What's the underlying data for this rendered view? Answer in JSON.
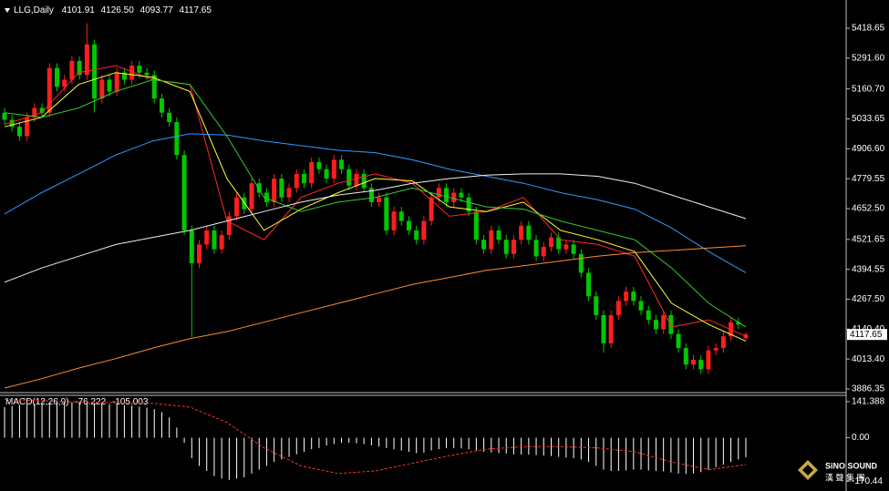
{
  "chart_data": [
    {
      "type": "candlestick",
      "title": "LLG,Daily",
      "last_bar_labels": [
        "4101.91",
        "4126.50",
        "4093.77",
        "4117.65"
      ],
      "up_color": "#ff1e1e",
      "down_color": "#00c800",
      "open": [
        5060,
        5030,
        5000,
        4960,
        5040,
        5080,
        5060,
        5250,
        5170,
        5200,
        5280,
        5220,
        5350,
        5120,
        5200,
        5150,
        5230,
        5200,
        5260,
        5230,
        5220,
        5120,
        5060,
        5020,
        4880,
        4560,
        4420,
        4500,
        4560,
        4480,
        4540,
        4620,
        4700,
        4650,
        4760,
        4720,
        4680,
        4780,
        4700,
        4740,
        4800,
        4760,
        4850,
        4820,
        4780,
        4860,
        4820,
        4750,
        4800,
        4740,
        4680,
        4700,
        4560,
        4640,
        4600,
        4560,
        4520,
        4600,
        4700,
        4740,
        4680,
        4720,
        4700,
        4640,
        4520,
        4480,
        4560,
        4520,
        4460,
        4520,
        4580,
        4520,
        4450,
        4490,
        4530,
        4480,
        4500,
        4460,
        4380,
        4280,
        4200,
        4080,
        4200,
        4260,
        4300,
        4260,
        4220,
        4180,
        4140,
        4200,
        4120,
        4060,
        3990,
        4010,
        3970,
        4050,
        4060,
        4110,
        4170,
        4101.91
      ],
      "high": [
        5080,
        5050,
        5020,
        5060,
        5100,
        5100,
        5270,
        5270,
        5220,
        5300,
        5300,
        5440,
        5370,
        5220,
        5220,
        5250,
        5250,
        5280,
        5280,
        5250,
        5240,
        5140,
        5080,
        5040,
        4900,
        4580,
        4520,
        4580,
        4580,
        4560,
        4640,
        4720,
        4720,
        4780,
        4780,
        4740,
        4800,
        4800,
        4760,
        4820,
        4820,
        4870,
        4870,
        4840,
        4880,
        4880,
        4840,
        4820,
        4820,
        4760,
        4720,
        4720,
        4660,
        4660,
        4620,
        4580,
        4620,
        4720,
        4760,
        4760,
        4740,
        4740,
        4720,
        4660,
        4540,
        4580,
        4580,
        4540,
        4540,
        4600,
        4600,
        4540,
        4510,
        4550,
        4550,
        4520,
        4520,
        4480,
        4400,
        4300,
        4220,
        4220,
        4280,
        4320,
        4320,
        4280,
        4240,
        4200,
        4220,
        4220,
        4140,
        4080,
        4030,
        4030,
        4070,
        4080,
        4130,
        4190,
        4190,
        4126.5
      ],
      "low": [
        5010,
        4980,
        4940,
        4940,
        5020,
        5040,
        5040,
        5150,
        5150,
        5180,
        5200,
        5200,
        5060,
        5100,
        5130,
        5130,
        5180,
        5180,
        5210,
        5200,
        5100,
        5040,
        5000,
        4860,
        4540,
        4107,
        4400,
        4480,
        4460,
        4460,
        4520,
        4600,
        4630,
        4630,
        4700,
        4660,
        4660,
        4680,
        4680,
        4720,
        4740,
        4740,
        4800,
        4760,
        4760,
        4800,
        4730,
        4730,
        4720,
        4660,
        4660,
        4540,
        4540,
        4580,
        4540,
        4500,
        4500,
        4580,
        4680,
        4660,
        4660,
        4680,
        4620,
        4500,
        4460,
        4460,
        4500,
        4440,
        4440,
        4500,
        4500,
        4430,
        4430,
        4470,
        4460,
        4460,
        4440,
        4360,
        4260,
        4180,
        4040,
        4060,
        4180,
        4240,
        4240,
        4200,
        4160,
        4120,
        4120,
        4100,
        4040,
        3970,
        3970,
        3950,
        3950,
        4030,
        4040,
        4090,
        4140,
        4093.77
      ],
      "close": [
        5030,
        5000,
        4960,
        5040,
        5080,
        5060,
        5250,
        5170,
        5200,
        5280,
        5220,
        5350,
        5120,
        5200,
        5150,
        5230,
        5200,
        5260,
        5230,
        5220,
        5120,
        5060,
        5020,
        4880,
        4560,
        4420,
        4500,
        4560,
        4480,
        4540,
        4620,
        4700,
        4650,
        4760,
        4720,
        4680,
        4780,
        4700,
        4740,
        4800,
        4760,
        4850,
        4820,
        4780,
        4860,
        4820,
        4750,
        4800,
        4740,
        4680,
        4700,
        4560,
        4640,
        4600,
        4560,
        4520,
        4600,
        4700,
        4740,
        4680,
        4720,
        4700,
        4640,
        4520,
        4480,
        4560,
        4520,
        4460,
        4520,
        4580,
        4520,
        4450,
        4490,
        4530,
        4480,
        4500,
        4460,
        4380,
        4280,
        4200,
        4080,
        4200,
        4260,
        4300,
        4260,
        4220,
        4180,
        4140,
        4200,
        4120,
        4060,
        3990,
        4010,
        3970,
        4050,
        4060,
        4110,
        4170,
        4160,
        4117.65
      ],
      "lines": [
        {
          "color": "#ff2a2a",
          "values": [
            5010,
            5060,
            5230,
            5260,
            5200,
            5180,
            4600,
            4520,
            4700,
            4760,
            4800,
            4760,
            4620,
            4640,
            4700,
            4520,
            4500,
            4450,
            4150,
            4180,
            4110
          ]
        },
        {
          "color": "#ffff33",
          "values": [
            5000,
            5040,
            5180,
            5230,
            5210,
            5150,
            4780,
            4560,
            4650,
            4720,
            4780,
            4770,
            4660,
            4640,
            4680,
            4560,
            4520,
            4470,
            4250,
            4160,
            4090
          ]
        },
        {
          "color": "#33cc33",
          "values": [
            5060,
            5040,
            5080,
            5150,
            5200,
            5180,
            4960,
            4700,
            4640,
            4680,
            4700,
            4740,
            4700,
            4660,
            4650,
            4600,
            4560,
            4520,
            4400,
            4250,
            4150
          ]
        },
        {
          "color": "#3399ff",
          "values": [
            4630,
            4720,
            4800,
            4880,
            4940,
            4970,
            4965,
            4940,
            4920,
            4900,
            4890,
            4860,
            4820,
            4790,
            4760,
            4720,
            4690,
            4650,
            4570,
            4470,
            4380
          ]
        },
        {
          "color": "#f0f0f0",
          "values": [
            4340,
            4400,
            4450,
            4500,
            4530,
            4560,
            4600,
            4640,
            4680,
            4710,
            4730,
            4760,
            4780,
            4795,
            4800,
            4800,
            4790,
            4760,
            4710,
            4660,
            4610
          ]
        },
        {
          "color": "#ff8c2a",
          "values": [
            3890,
            3930,
            3975,
            4015,
            4060,
            4100,
            4130,
            4170,
            4210,
            4250,
            4290,
            4330,
            4360,
            4390,
            4410,
            4430,
            4450,
            4465,
            4475,
            4485,
            4495
          ]
        }
      ],
      "ylim": [
        3874.7,
        5523.1
      ],
      "yticks": [
        5418.65,
        {
          "value": 5291.6,
          "label": "5291.60"
        },
        {
          "value": 5160.7,
          "label": "5160.70"
        },
        5033.65,
        {
          "value": 4906.6,
          "label": "4906.60"
        },
        4779.55,
        {
          "value": 4652.5,
          "label": "4652.50"
        },
        4521.65,
        4394.55,
        {
          "value": 4267.5,
          "label": "4267.50"
        },
        {
          "value": 4140.4,
          "label": "4140.40"
        },
        {
          "value": 4013.4,
          "label": "4013.40"
        },
        3886.35
      ],
      "grid": false
    },
    {
      "type": "bar",
      "title": "MACD(12,26,9)",
      "color": "#ffffff",
      "values": [
        120,
        125,
        128,
        130,
        132,
        134,
        138,
        140,
        140,
        139,
        138,
        138,
        136,
        134,
        132,
        130,
        128,
        126,
        122,
        118,
        112,
        100,
        80,
        40,
        -20,
        -80,
        -110,
        -130,
        -150,
        -160,
        -165,
        -160,
        -155,
        -140,
        -125,
        -110,
        -95,
        -85,
        -75,
        -65,
        -55,
        -45,
        -40,
        -30,
        -25,
        -20,
        -20,
        -22,
        -25,
        -30,
        -35,
        -40,
        -45,
        -50,
        -55,
        -60,
        -58,
        -50,
        -45,
        -40,
        -40,
        -42,
        -45,
        -50,
        -55,
        -58,
        -60,
        -62,
        -65,
        -66,
        -66,
        -68,
        -70,
        -72,
        -75,
        -78,
        -80,
        -85,
        -95,
        -110,
        -125,
        -130,
        -130,
        -128,
        -125,
        -125,
        -128,
        -130,
        -132,
        -136,
        -140,
        -142,
        -140,
        -135,
        -125,
        -115,
        -105,
        -95,
        -85,
        -76.222
      ],
      "signal": {
        "color": "#ff3030",
        "dashed": true,
        "values": [
          150,
          145,
          140,
          138,
          135,
          120,
          60,
          -40,
          -110,
          -140,
          -130,
          -100,
          -70,
          -45,
          -35,
          -35,
          -40,
          -55,
          -95,
          -125,
          -105.003
        ]
      },
      "ylim": [
        -201.5,
        166.1
      ],
      "yticks": [
        141.388,
        {
          "value": 0,
          "label": "0.00"
        },
        -170.44
      ],
      "grid": false
    }
  ],
  "logo": {
    "name": "SiNO SOUND",
    "subtitle": "漢 聲 集 團"
  }
}
